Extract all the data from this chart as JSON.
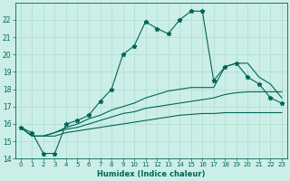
{
  "xlabel": "Humidex (Indice chaleur)",
  "x_values": [
    0,
    1,
    2,
    3,
    4,
    5,
    6,
    7,
    8,
    9,
    10,
    11,
    12,
    13,
    14,
    15,
    16,
    17,
    18,
    19,
    20,
    21,
    22,
    23
  ],
  "line1": [
    15.8,
    15.5,
    14.3,
    14.3,
    16.0,
    16.2,
    16.5,
    17.3,
    18.0,
    20.0,
    20.5,
    21.9,
    21.5,
    21.2,
    22.0,
    22.5,
    22.5,
    18.5,
    19.3,
    19.5,
    18.7,
    18.3,
    17.5,
    17.2
  ],
  "line2": [
    15.8,
    15.3,
    15.3,
    15.3,
    15.5,
    15.6,
    15.7,
    15.8,
    15.9,
    16.0,
    16.1,
    16.2,
    16.3,
    16.4,
    16.5,
    16.55,
    16.6,
    16.6,
    16.65,
    16.65,
    16.65,
    16.65,
    16.65,
    16.65
  ],
  "line3": [
    15.8,
    15.3,
    15.3,
    15.5,
    15.7,
    15.8,
    16.0,
    16.2,
    16.4,
    16.6,
    16.7,
    16.9,
    17.0,
    17.1,
    17.2,
    17.3,
    17.4,
    17.5,
    17.7,
    17.8,
    17.85,
    17.85,
    17.85,
    17.85
  ],
  "line4": [
    15.8,
    15.3,
    15.3,
    15.5,
    15.8,
    16.0,
    16.3,
    16.5,
    16.8,
    17.0,
    17.2,
    17.5,
    17.7,
    17.9,
    18.0,
    18.1,
    18.1,
    18.1,
    19.3,
    19.5,
    19.5,
    18.7,
    18.3,
    17.5
  ],
  "bg_color": "#cceee8",
  "line_color": "#006655",
  "grid_color": "#aaddcc",
  "ylim": [
    14,
    23
  ],
  "yticks": [
    14,
    15,
    16,
    17,
    18,
    19,
    20,
    21,
    22
  ],
  "xticks": [
    0,
    1,
    2,
    3,
    4,
    5,
    6,
    7,
    8,
    9,
    10,
    11,
    12,
    13,
    14,
    15,
    16,
    17,
    18,
    19,
    20,
    21,
    22,
    23
  ]
}
